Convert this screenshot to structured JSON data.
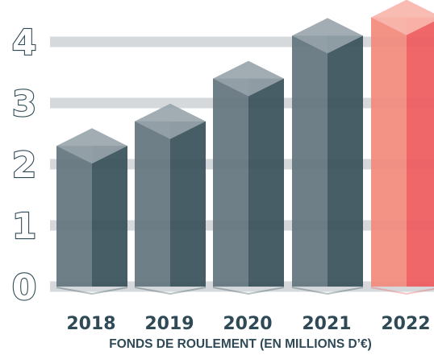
{
  "chart_data": {
    "type": "bar",
    "categories": [
      "2018",
      "2019",
      "2020",
      "2021",
      "2022"
    ],
    "values": [
      2.3,
      2.7,
      3.4,
      4.1,
      4.4
    ],
    "yticks": [
      "0",
      "1",
      "2",
      "3",
      "4"
    ],
    "ylim": [
      0,
      4
    ],
    "grid": true,
    "title": "",
    "xlabel": "FONDS DE ROULEMENT (EN MILLIONS D’€)",
    "ylabel": "",
    "colors": {
      "bar_front": "#5f717b",
      "bar_side": "#344c57",
      "bar_top": "#97a3ab",
      "highlight_front": "#f28a7c",
      "highlight_side": "#ee5a5c",
      "highlight_top": "#f8b6ad",
      "grid": "#d5d9dc",
      "text": "#2f4a56"
    }
  }
}
